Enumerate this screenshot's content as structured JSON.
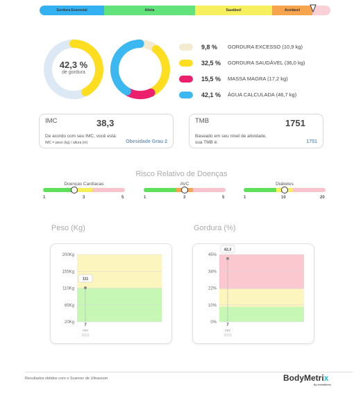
{
  "classification": {
    "segments": [
      "Gordura Essencial",
      "Atleta",
      "Saudável",
      "Aceitável",
      "Obeso"
    ],
    "colors": [
      "#34b1f0",
      "#62e27a",
      "#f6ef5e",
      "#f7a44e",
      "#f9d0d6"
    ]
  },
  "body_fat": {
    "value": "42,3 %",
    "label": "de gordura",
    "fraction": 0.423
  },
  "composition": [
    {
      "pct": "9,8 %",
      "label": "GORDURA EXCESSO (10,9 kg)",
      "value": 9.8,
      "color": "#f3ead0"
    },
    {
      "pct": "32,5 %",
      "label": "GORDURA SAUDÁVEL (36,0 kg)",
      "value": 32.5,
      "color": "#ffde1f"
    },
    {
      "pct": "15,5 %",
      "label": "MASSA MAGRA (17,2 kg)",
      "value": 15.5,
      "color": "#ec1f6d"
    },
    {
      "pct": "42,1 %",
      "label": "ÁGUA CALCULADA (46,7 kg)",
      "value": 42.1,
      "color": "#3cb8f1"
    }
  ],
  "imc": {
    "title": "IMC",
    "value": "38,3",
    "desc": "De acordo com seu IMC, você está:",
    "formula": "IMC = peso (kg) / altura (m)",
    "result": "Obesidade Grau 2"
  },
  "tmb": {
    "title": "TMB",
    "value": "1751",
    "desc": "Baseado em seu nível de atividade,",
    "desc2": "sua TMB é:",
    "result": "1751"
  },
  "risk": {
    "title": "Risco Relativo de Doenças",
    "items": [
      {
        "name": "Doenças Cardíacas",
        "ticks": [
          "1",
          "3",
          "5"
        ],
        "level": 0.38
      },
      {
        "name": "AVC",
        "ticks": [
          "1",
          "3",
          "5"
        ],
        "level": 0.5
      },
      {
        "name": "Diabetes",
        "ticks": [
          "1",
          "10",
          "20"
        ],
        "level": 0.5
      }
    ]
  },
  "charts": {
    "peso": {
      "title": "Peso (Kg)",
      "yticks": [
        "200Kg",
        "155Kg",
        "110Kg",
        "65Kg",
        "20Kg"
      ],
      "point_label": "111",
      "point_value": 111,
      "range": [
        20,
        200
      ],
      "zones": [
        {
          "from": 20,
          "to": 110,
          "color": "#c6f7b5"
        },
        {
          "from": 110,
          "to": 200,
          "color": "#fcf5bd"
        }
      ],
      "x_day": "7",
      "x_month": "nov",
      "x_year": "2023"
    },
    "gordura": {
      "title": "Gordura (%)",
      "yticks": [
        "45%",
        "34%",
        "22%",
        "10%",
        "0%"
      ],
      "point_label": "42,3",
      "point_value": 42.3,
      "range": [
        0,
        45
      ],
      "zones": [
        {
          "from": 0,
          "to": 10,
          "color": "#c6f7b5"
        },
        {
          "from": 10,
          "to": 22,
          "color": "#fcf5bd"
        },
        {
          "from": 22,
          "to": 45,
          "color": "#fcc8d0"
        }
      ],
      "x_day": "7",
      "x_month": "nov",
      "x_year": "2023"
    }
  },
  "footer": {
    "text": "Resultados obtidos com o Scanner de Ultrassom",
    "logo_main": "BodyMetri",
    "logo_x": "x",
    "logo_sub": "By IntelaMetrix"
  }
}
